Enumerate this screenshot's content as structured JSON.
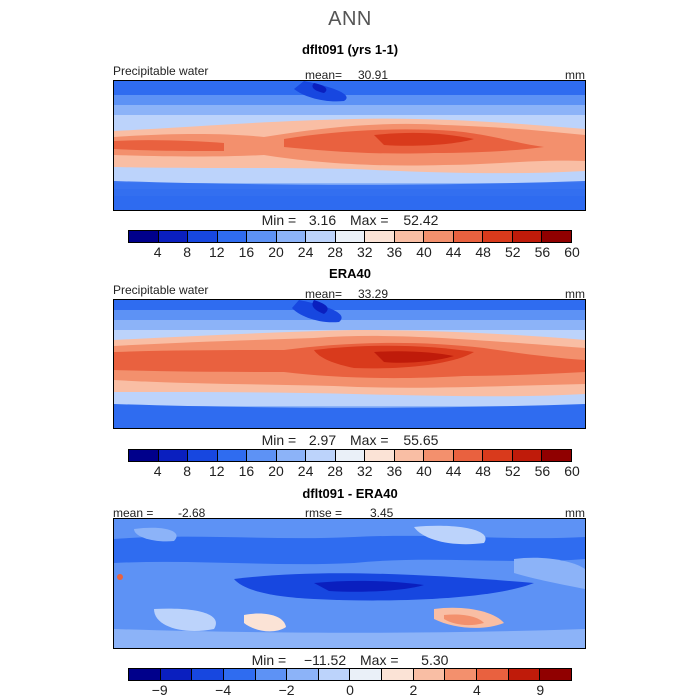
{
  "title": "ANN",
  "units": "mm",
  "colors": {
    "precip_scale": [
      "#00008b",
      "#0a1fbf",
      "#1747e0",
      "#2f6cf0",
      "#5d92f5",
      "#8cb3f8",
      "#bcd3fb",
      "#eaf0f8",
      "#fbe3d6",
      "#f9bea4",
      "#f3906d",
      "#e9613f",
      "#d93a1c",
      "#bf1b0a",
      "#900000"
    ],
    "diff_scale": [
      "#00008b",
      "#0a1fbf",
      "#1747e0",
      "#2f6cf0",
      "#5d92f5",
      "#8cb3f8",
      "#bcd3fb",
      "#eaf0f8",
      "#fbe3d6",
      "#f9bea4",
      "#f3906d",
      "#e9613f",
      "#bf1b0a",
      "#900000"
    ]
  },
  "panels": [
    {
      "title": "dflt091 (yrs 1-1)",
      "variable": "Precipitable water",
      "mean_label": "mean=",
      "mean_value": "30.91",
      "units": "mm",
      "min_label": "Min =",
      "min_value": "3.16",
      "max_label": "Max =",
      "max_value": "52.42"
    },
    {
      "title": "ERA40",
      "variable": "Precipitable water",
      "mean_label": "mean=",
      "mean_value": "33.29",
      "units": "mm",
      "min_label": "Min =",
      "min_value": "2.97",
      "max_label": "Max =",
      "max_value": "55.65"
    },
    {
      "title": "dflt091 - ERA40",
      "mean_label": "mean =",
      "mean_value": "-2.68",
      "rmse_label": "rmse =",
      "rmse_value": "3.45",
      "units": "mm",
      "min_label": "Min =",
      "min_value": "−11.52",
      "max_label": "Max =",
      "max_value": "5.30"
    }
  ],
  "chart_data": [
    {
      "type": "heatmap",
      "title": "dflt091 (yrs 1-1)",
      "colorbar_ticks": [
        "4",
        "8",
        "12",
        "16",
        "20",
        "24",
        "28",
        "32",
        "36",
        "40",
        "44",
        "48",
        "52",
        "56",
        "60"
      ],
      "zlim": [
        0,
        64
      ],
      "mean": 30.91,
      "min": 3.16,
      "max": 52.42
    },
    {
      "type": "heatmap",
      "title": "ERA40",
      "colorbar_ticks": [
        "4",
        "8",
        "12",
        "16",
        "20",
        "24",
        "28",
        "32",
        "36",
        "40",
        "44",
        "48",
        "52",
        "56",
        "60"
      ],
      "zlim": [
        0,
        64
      ],
      "mean": 33.29,
      "min": 2.97,
      "max": 55.65
    },
    {
      "type": "heatmap",
      "title": "dflt091 - ERA40",
      "colorbar_ticks": [
        "−9",
        "−4",
        "−2",
        "0",
        "2",
        "4",
        "9"
      ],
      "mean": -2.68,
      "rmse": 3.45,
      "min": -11.52,
      "max": 5.3
    }
  ]
}
